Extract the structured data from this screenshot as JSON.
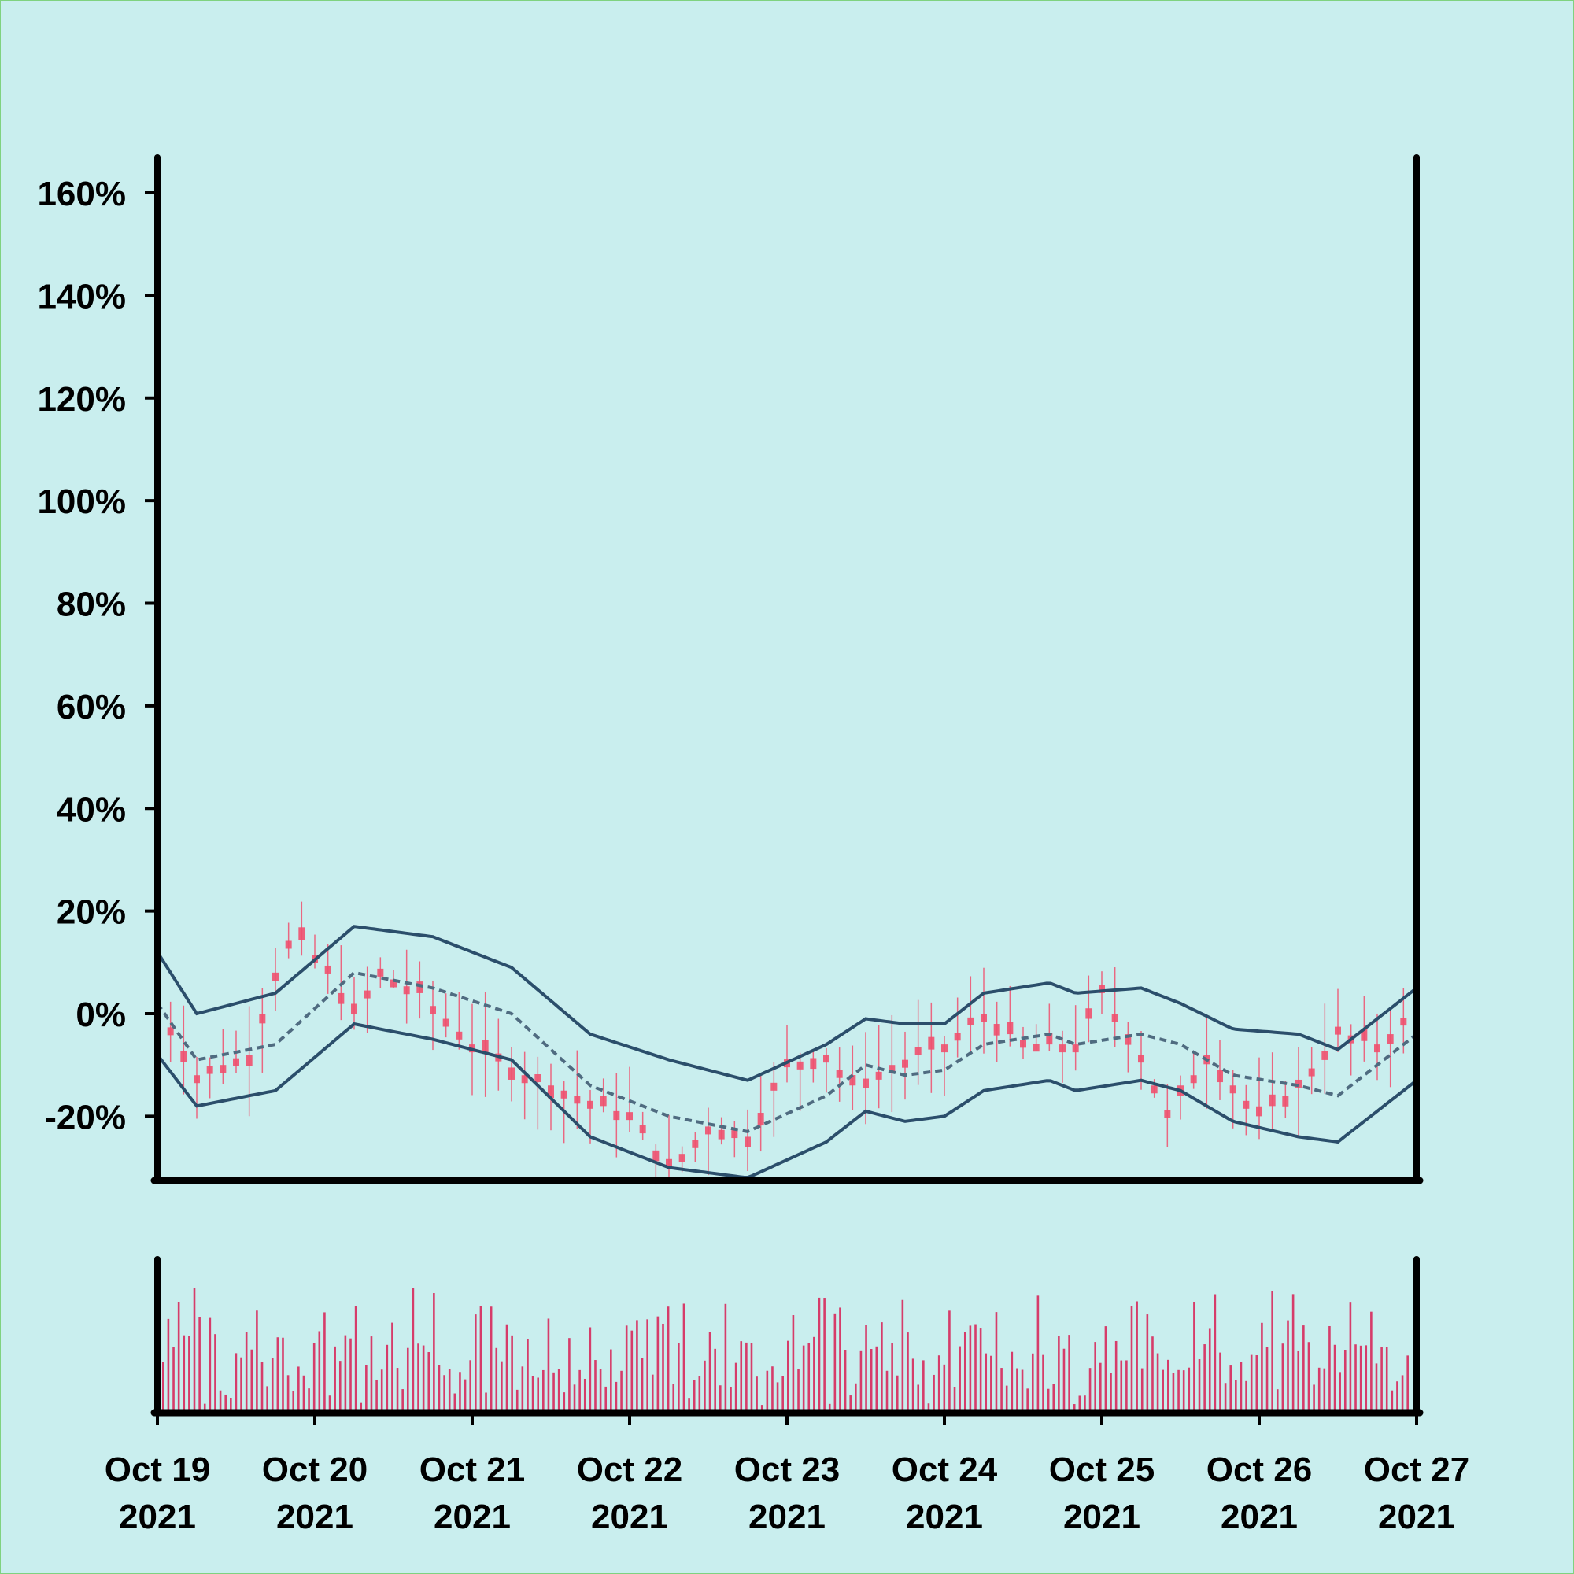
{
  "chart_data": [
    {
      "type": "candlestick",
      "title": "",
      "xlabel": "",
      "ylabel": "",
      "ylim": [
        -33,
        168
      ],
      "y_ticks": [
        {
          "value": -20,
          "label": "-20%"
        },
        {
          "value": 0,
          "label": "0%"
        },
        {
          "value": 20,
          "label": "20%"
        },
        {
          "value": 40,
          "label": "40%"
        },
        {
          "value": 60,
          "label": "60%"
        },
        {
          "value": 80,
          "label": "80%"
        },
        {
          "value": 100,
          "label": "100%"
        },
        {
          "value": 120,
          "label": "120%"
        },
        {
          "value": 140,
          "label": "140%"
        },
        {
          "value": 160,
          "label": "160%"
        }
      ],
      "x_ticks": [
        {
          "value": "2021-10-19",
          "line1": "Oct 19",
          "line2": "2021"
        },
        {
          "value": "2021-10-20",
          "line1": "Oct 20",
          "line2": "2021"
        },
        {
          "value": "2021-10-21",
          "line1": "Oct 21",
          "line2": "2021"
        },
        {
          "value": "2021-10-22",
          "line1": "Oct 22",
          "line2": "2021"
        },
        {
          "value": "2021-10-23",
          "line1": "Oct 23",
          "line2": "2021"
        },
        {
          "value": "2021-10-24",
          "line1": "Oct 24",
          "line2": "2021"
        },
        {
          "value": "2021-10-25",
          "line1": "Oct 25",
          "line2": "2021"
        },
        {
          "value": "2021-10-26",
          "line1": "Oct 26",
          "line2": "2021"
        },
        {
          "value": "2021-10-27",
          "line1": "Oct 27",
          "line2": "2021"
        }
      ],
      "xlim": [
        "2021-10-19",
        "2021-10-27"
      ],
      "grid": false,
      "candle_color": "#f0506e",
      "candles_per_day": 12,
      "close_path": [
        {
          "date": "2021-10-19T00:00",
          "value": 2
        },
        {
          "date": "2021-10-19T06:00",
          "value": -12
        },
        {
          "date": "2021-10-19T14:00",
          "value": -8
        },
        {
          "date": "2021-10-19T18:00",
          "value": 8
        },
        {
          "date": "2021-10-19T21:00",
          "value": 16
        },
        {
          "date": "2021-10-20T02:00",
          "value": 8
        },
        {
          "date": "2021-10-20T06:00",
          "value": 0
        },
        {
          "date": "2021-10-20T10:00",
          "value": 8
        },
        {
          "date": "2021-10-20T16:00",
          "value": 4
        },
        {
          "date": "2021-10-21T00:00",
          "value": -6
        },
        {
          "date": "2021-10-21T08:00",
          "value": -12
        },
        {
          "date": "2021-10-21T16:00",
          "value": -16
        },
        {
          "date": "2021-10-22T00:00",
          "value": -20
        },
        {
          "date": "2021-10-22T06:00",
          "value": -30
        },
        {
          "date": "2021-10-22T12:00",
          "value": -22
        },
        {
          "date": "2021-10-22T18:00",
          "value": -24
        },
        {
          "date": "2021-10-23T00:00",
          "value": -10
        },
        {
          "date": "2021-10-23T06:00",
          "value": -8
        },
        {
          "date": "2021-10-23T10:00",
          "value": -14
        },
        {
          "date": "2021-10-23T16:00",
          "value": -10
        },
        {
          "date": "2021-10-24T00:00",
          "value": -6
        },
        {
          "date": "2021-10-24T06:00",
          "value": 0
        },
        {
          "date": "2021-10-24T12:00",
          "value": -6
        },
        {
          "date": "2021-10-24T20:00",
          "value": -6
        },
        {
          "date": "2021-10-25T00:00",
          "value": 4
        },
        {
          "date": "2021-10-25T06:00",
          "value": -8
        },
        {
          "date": "2021-10-25T10:00",
          "value": -20
        },
        {
          "date": "2021-10-25T16:00",
          "value": -8
        },
        {
          "date": "2021-10-26T00:00",
          "value": -20
        },
        {
          "date": "2021-10-26T06:00",
          "value": -14
        },
        {
          "date": "2021-10-26T12:00",
          "value": -4
        },
        {
          "date": "2021-10-26T18:00",
          "value": -6
        },
        {
          "date": "2021-10-27T00:00",
          "value": 0
        }
      ],
      "bands": {
        "color": "#2b4e6b",
        "upper": [
          {
            "date": "2021-10-19T00:00",
            "value": 12
          },
          {
            "date": "2021-10-19T06:00",
            "value": 0
          },
          {
            "date": "2021-10-19T18:00",
            "value": 4
          },
          {
            "date": "2021-10-20T06:00",
            "value": 17
          },
          {
            "date": "2021-10-20T18:00",
            "value": 15
          },
          {
            "date": "2021-10-21T06:00",
            "value": 9
          },
          {
            "date": "2021-10-21T18:00",
            "value": -4
          },
          {
            "date": "2021-10-22T06:00",
            "value": -9
          },
          {
            "date": "2021-10-22T18:00",
            "value": -13
          },
          {
            "date": "2021-10-23T06:00",
            "value": -6
          },
          {
            "date": "2021-10-23T12:00",
            "value": -1
          },
          {
            "date": "2021-10-23T18:00",
            "value": -2
          },
          {
            "date": "2021-10-24T00:00",
            "value": -2
          },
          {
            "date": "2021-10-24T06:00",
            "value": 4
          },
          {
            "date": "2021-10-24T16:00",
            "value": 6
          },
          {
            "date": "2021-10-24T20:00",
            "value": 4
          },
          {
            "date": "2021-10-25T06:00",
            "value": 5
          },
          {
            "date": "2021-10-25T12:00",
            "value": 2
          },
          {
            "date": "2021-10-25T20:00",
            "value": -3
          },
          {
            "date": "2021-10-26T06:00",
            "value": -4
          },
          {
            "date": "2021-10-26T12:00",
            "value": -7
          },
          {
            "date": "2021-10-27T00:00",
            "value": 5
          }
        ],
        "middle": [
          {
            "date": "2021-10-19T00:00",
            "value": 2
          },
          {
            "date": "2021-10-19T06:00",
            "value": -9
          },
          {
            "date": "2021-10-19T18:00",
            "value": -6
          },
          {
            "date": "2021-10-20T06:00",
            "value": 8
          },
          {
            "date": "2021-10-20T18:00",
            "value": 5
          },
          {
            "date": "2021-10-21T06:00",
            "value": 0
          },
          {
            "date": "2021-10-21T18:00",
            "value": -14
          },
          {
            "date": "2021-10-22T06:00",
            "value": -20
          },
          {
            "date": "2021-10-22T18:00",
            "value": -23
          },
          {
            "date": "2021-10-23T06:00",
            "value": -16
          },
          {
            "date": "2021-10-23T12:00",
            "value": -10
          },
          {
            "date": "2021-10-23T18:00",
            "value": -12
          },
          {
            "date": "2021-10-24T00:00",
            "value": -11
          },
          {
            "date": "2021-10-24T06:00",
            "value": -6
          },
          {
            "date": "2021-10-24T16:00",
            "value": -4
          },
          {
            "date": "2021-10-24T20:00",
            "value": -6
          },
          {
            "date": "2021-10-25T06:00",
            "value": -4
          },
          {
            "date": "2021-10-25T12:00",
            "value": -6
          },
          {
            "date": "2021-10-25T20:00",
            "value": -12
          },
          {
            "date": "2021-10-26T06:00",
            "value": -14
          },
          {
            "date": "2021-10-26T12:00",
            "value": -16
          },
          {
            "date": "2021-10-27T00:00",
            "value": -4
          }
        ],
        "lower": [
          {
            "date": "2021-10-19T00:00",
            "value": -8
          },
          {
            "date": "2021-10-19T06:00",
            "value": -18
          },
          {
            "date": "2021-10-19T18:00",
            "value": -15
          },
          {
            "date": "2021-10-20T06:00",
            "value": -2
          },
          {
            "date": "2021-10-20T18:00",
            "value": -5
          },
          {
            "date": "2021-10-21T06:00",
            "value": -9
          },
          {
            "date": "2021-10-21T18:00",
            "value": -24
          },
          {
            "date": "2021-10-22T06:00",
            "value": -30
          },
          {
            "date": "2021-10-22T18:00",
            "value": -32
          },
          {
            "date": "2021-10-23T06:00",
            "value": -25
          },
          {
            "date": "2021-10-23T12:00",
            "value": -19
          },
          {
            "date": "2021-10-23T18:00",
            "value": -21
          },
          {
            "date": "2021-10-24T00:00",
            "value": -20
          },
          {
            "date": "2021-10-24T06:00",
            "value": -15
          },
          {
            "date": "2021-10-24T16:00",
            "value": -13
          },
          {
            "date": "2021-10-24T20:00",
            "value": -15
          },
          {
            "date": "2021-10-25T06:00",
            "value": -13
          },
          {
            "date": "2021-10-25T12:00",
            "value": -15
          },
          {
            "date": "2021-10-25T20:00",
            "value": -21
          },
          {
            "date": "2021-10-26T06:00",
            "value": -24
          },
          {
            "date": "2021-10-26T12:00",
            "value": -25
          },
          {
            "date": "2021-10-27T00:00",
            "value": -13
          }
        ]
      }
    },
    {
      "type": "bar",
      "title": "",
      "ylabel": "",
      "bar_color": "#d63c6a",
      "bars_per_day": 30,
      "relative_volume_profile": [
        0.55,
        0.92,
        0.15,
        0.85,
        0.3,
        0.65,
        0.95,
        0.9,
        0.05,
        0.55,
        0.75,
        0.1,
        0.05,
        0.15,
        0.5,
        0.45,
        0.3,
        0.2,
        0.85,
        0.25,
        0.3,
        0.35,
        0.85,
        0.6,
        0.25,
        0.1,
        0.2,
        0.05,
        0.15,
        0.45
      ]
    }
  ]
}
